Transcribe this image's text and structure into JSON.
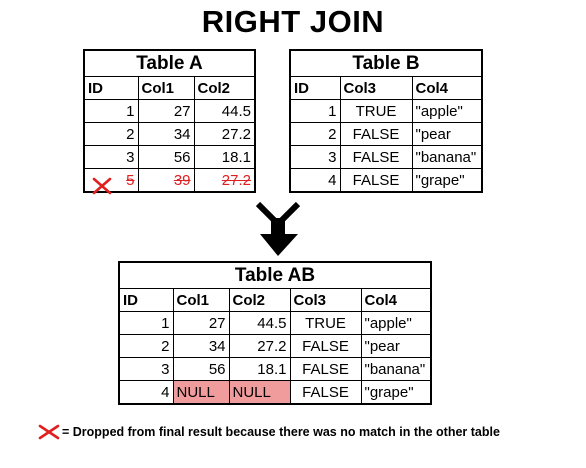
{
  "title": "RIGHT JOIN",
  "table_a": {
    "title": "Table A",
    "headers": [
      "ID",
      "Col1",
      "Col2"
    ],
    "rows": [
      [
        "1",
        "27",
        "44.5"
      ],
      [
        "2",
        "34",
        "27.2"
      ],
      [
        "3",
        "56",
        "18.1"
      ],
      [
        "5",
        "39",
        "27.2"
      ]
    ],
    "dropped_row_index": 3
  },
  "table_b": {
    "title": "Table B",
    "headers": [
      "ID",
      "Col3",
      "Col4"
    ],
    "rows": [
      [
        "1",
        "TRUE",
        "\"apple\""
      ],
      [
        "2",
        "FALSE",
        "\"pear"
      ],
      [
        "3",
        "FALSE",
        "\"banana\""
      ],
      [
        "4",
        "FALSE",
        "\"grape\""
      ]
    ]
  },
  "table_ab": {
    "title": "Table AB",
    "headers": [
      "ID",
      "Col1",
      "Col2",
      "Col3",
      "Col4"
    ],
    "rows": [
      [
        "1",
        "27",
        "44.5",
        "TRUE",
        "\"apple\""
      ],
      [
        "2",
        "34",
        "27.2",
        "FALSE",
        "\"pear"
      ],
      [
        "3",
        "56",
        "18.1",
        "FALSE",
        "\"banana\""
      ],
      [
        "4",
        "NULL",
        "NULL",
        "FALSE",
        "\"grape\""
      ]
    ]
  },
  "legend": {
    "text": "= Dropped from final result because there was no match in the other table",
    "icon": "red-x-icon"
  },
  "colors": {
    "null_highlight": "#f19c9c",
    "dropped": "#e02020"
  }
}
